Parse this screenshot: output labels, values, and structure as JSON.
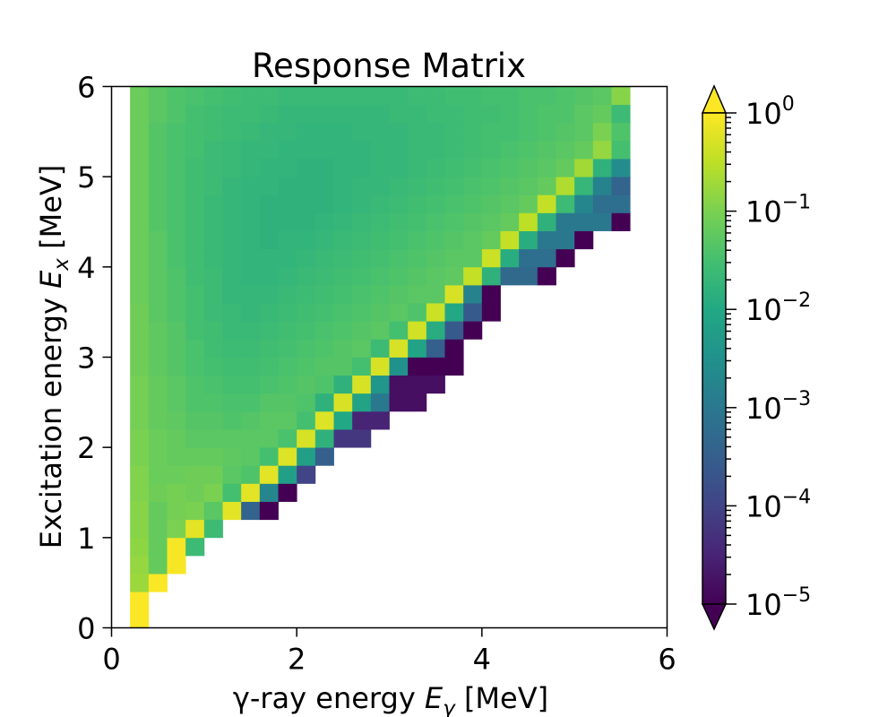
{
  "chart_data": {
    "type": "heatmap",
    "title": "Response Matrix",
    "xlabel": {
      "prefix": "γ-ray energy ",
      "sym": "E",
      "sub": "γ",
      "suffix": " [MeV]"
    },
    "ylabel": {
      "prefix": "Excitation energy ",
      "sym": "E",
      "sub": "x",
      "suffix": " [MeV]"
    },
    "xlim": [
      0,
      6
    ],
    "ylim": [
      0,
      6
    ],
    "x_ticks": [
      "0",
      "2",
      "4",
      "6"
    ],
    "y_ticks": [
      "0",
      "1",
      "2",
      "3",
      "4",
      "5",
      "6"
    ],
    "bin_width_mev": 0.2,
    "x_bins_start_mev": 0.2,
    "colorbar": {
      "scale": "log",
      "min": 1e-05,
      "max": 1,
      "tick_labels": [
        {
          "base": "10",
          "exp": "0"
        },
        {
          "base": "10",
          "exp": "−1"
        },
        {
          "base": "10",
          "exp": "−2"
        },
        {
          "base": "10",
          "exp": "−3"
        },
        {
          "base": "10",
          "exp": "−4"
        },
        {
          "base": "10",
          "exp": "−5"
        }
      ],
      "extend": "both",
      "colormap": "viridis"
    },
    "values_log10": [
      [
        -0.02
      ],
      [
        -0.02
      ],
      [
        -0.75,
        -0.02
      ],
      [
        -0.8,
        -1.2,
        -0.05
      ],
      [
        -0.85,
        -1.2,
        -0.05,
        -1.6
      ],
      [
        -0.9,
        -1.2,
        -1.0,
        -0.2,
        -1.6
      ],
      [
        -0.9,
        -1.2,
        -1.05,
        -1.0,
        -1.3,
        -0.2,
        -3.4,
        -5.0
      ],
      [
        -0.95,
        -1.1,
        -1.05,
        -1.1,
        -1.0,
        -1.5,
        -0.2,
        -2.7,
        -5.0
      ],
      [
        -0.95,
        -1.15,
        -1.15,
        -1.1,
        -1.1,
        -1.3,
        -1.4,
        -0.2,
        -2.2,
        -4.0
      ],
      [
        -1.0,
        -1.15,
        -1.2,
        -1.2,
        -1.2,
        -1.25,
        -1.3,
        -1.5,
        -0.25,
        -2.2,
        -3.5
      ],
      [
        -1.0,
        -1.15,
        -1.2,
        -1.3,
        -1.3,
        -1.3,
        -1.3,
        -1.3,
        -1.45,
        -0.3,
        -1.8,
        -4.2,
        -4.2
      ],
      [
        -1.05,
        -1.2,
        -1.25,
        -1.35,
        -1.35,
        -1.4,
        -1.35,
        -1.3,
        -1.3,
        -1.5,
        -0.25,
        -2.0,
        -4.5,
        -4.5
      ],
      [
        -1.05,
        -1.2,
        -1.3,
        -1.4,
        -1.4,
        -1.45,
        -1.45,
        -1.35,
        -1.35,
        -1.4,
        -1.8,
        -0.3,
        -2.1,
        -3.0,
        -4.8,
        -4.8
      ],
      [
        -1.05,
        -1.2,
        -1.3,
        -1.4,
        -1.45,
        -1.5,
        -1.5,
        -1.45,
        -1.4,
        -1.35,
        -1.4,
        -1.8,
        -0.3,
        -2.4,
        -4.8,
        -4.8,
        -4.8
      ],
      [
        -1.1,
        -1.25,
        -1.35,
        -1.45,
        -1.5,
        -1.55,
        -1.55,
        -1.5,
        -1.45,
        -1.4,
        -1.35,
        -1.35,
        -1.5,
        -0.3,
        -2.5,
        -5.0,
        -5.0,
        -5.0
      ],
      [
        -1.1,
        -1.25,
        -1.35,
        -1.45,
        -1.55,
        -1.6,
        -1.6,
        -1.55,
        -1.5,
        -1.45,
        -1.4,
        -1.35,
        -1.3,
        -1.6,
        -0.3,
        -2.1,
        -3.5,
        -5.0
      ],
      [
        -1.1,
        -1.25,
        -1.35,
        -1.5,
        -1.55,
        -1.65,
        -1.65,
        -1.6,
        -1.55,
        -1.5,
        -1.45,
        -1.4,
        -1.35,
        -1.3,
        -1.5,
        -0.35,
        -1.9,
        -3.6,
        -5.0
      ],
      [
        -1.1,
        -1.3,
        -1.4,
        -1.5,
        -1.6,
        -1.65,
        -1.7,
        -1.65,
        -1.6,
        -1.55,
        -1.5,
        -1.45,
        -1.4,
        -1.35,
        -1.3,
        -1.4,
        -0.4,
        -2.0,
        -3.6,
        -5.0
      ],
      [
        -1.15,
        -1.3,
        -1.4,
        -1.5,
        -1.6,
        -1.7,
        -1.7,
        -1.7,
        -1.65,
        -1.6,
        -1.55,
        -1.5,
        -1.45,
        -1.4,
        -1.35,
        -1.3,
        -1.3,
        -0.3,
        -2.8,
        -5.0
      ],
      [
        -1.15,
        -1.3,
        -1.4,
        -1.55,
        -1.6,
        -1.7,
        -1.75,
        -1.75,
        -1.7,
        -1.65,
        -1.6,
        -1.55,
        -1.5,
        -1.45,
        -1.4,
        -1.35,
        -1.3,
        -1.25,
        -0.45,
        -1.8,
        -3.3,
        -3.3,
        -5.0
      ],
      [
        -1.15,
        -1.3,
        -1.45,
        -1.55,
        -1.65,
        -1.7,
        -1.75,
        -1.75,
        -1.75,
        -1.7,
        -1.65,
        -1.6,
        -1.55,
        -1.5,
        -1.45,
        -1.4,
        -1.35,
        -1.3,
        -1.3,
        -0.4,
        -1.9,
        -3.2,
        -3.2,
        -5.0
      ],
      [
        -1.15,
        -1.3,
        -1.45,
        -1.55,
        -1.65,
        -1.7,
        -1.75,
        -1.8,
        -1.75,
        -1.75,
        -1.7,
        -1.65,
        -1.6,
        -1.55,
        -1.5,
        -1.45,
        -1.4,
        -1.35,
        -1.3,
        -1.2,
        -0.45,
        -1.9,
        -3.0,
        -3.0,
        -5.0
      ],
      [
        -1.15,
        -1.35,
        -1.45,
        -1.55,
        -1.65,
        -1.7,
        -1.75,
        -1.8,
        -1.8,
        -1.8,
        -1.75,
        -1.7,
        -1.65,
        -1.6,
        -1.55,
        -1.5,
        -1.45,
        -1.4,
        -1.35,
        -1.3,
        -1.2,
        -0.5,
        -1.8,
        -3.0,
        -3.0,
        -3.0,
        -5.0
      ],
      [
        -1.15,
        -1.35,
        -1.45,
        -1.55,
        -1.65,
        -1.7,
        -1.75,
        -1.8,
        -1.8,
        -1.8,
        -1.8,
        -1.75,
        -1.7,
        -1.65,
        -1.6,
        -1.55,
        -1.5,
        -1.45,
        -1.4,
        -1.35,
        -1.3,
        -1.2,
        -0.45,
        -1.6,
        -2.7,
        -3.2,
        -3.2
      ],
      [
        -1.15,
        -1.35,
        -1.45,
        -1.55,
        -1.6,
        -1.7,
        -1.75,
        -1.75,
        -1.8,
        -1.8,
        -1.8,
        -1.75,
        -1.7,
        -1.7,
        -1.65,
        -1.6,
        -1.55,
        -1.5,
        -1.45,
        -1.4,
        -1.35,
        -1.3,
        -1.2,
        -0.6,
        -1.7,
        -2.8,
        -3.4
      ],
      [
        -1.15,
        -1.35,
        -1.45,
        -1.55,
        -1.6,
        -1.65,
        -1.7,
        -1.75,
        -1.75,
        -1.8,
        -1.8,
        -1.75,
        -1.75,
        -1.7,
        -1.7,
        -1.65,
        -1.6,
        -1.55,
        -1.5,
        -1.45,
        -1.4,
        -1.35,
        -1.3,
        -1.2,
        -0.7,
        -1.8,
        -2.6
      ],
      [
        -1.15,
        -1.35,
        -1.45,
        -1.5,
        -1.6,
        -1.65,
        -1.7,
        -1.7,
        -1.75,
        -1.75,
        -1.75,
        -1.75,
        -1.75,
        -1.7,
        -1.7,
        -1.65,
        -1.65,
        -1.6,
        -1.55,
        -1.5,
        -1.45,
        -1.4,
        -1.35,
        -1.3,
        -1.2,
        -0.8,
        -1.5
      ],
      [
        -1.15,
        -1.35,
        -1.45,
        -1.5,
        -1.55,
        -1.6,
        -1.65,
        -1.7,
        -1.7,
        -1.75,
        -1.75,
        -1.75,
        -1.7,
        -1.7,
        -1.7,
        -1.65,
        -1.65,
        -1.6,
        -1.55,
        -1.5,
        -1.5,
        -1.45,
        -1.4,
        -1.35,
        -1.3,
        -1.0,
        -1.4
      ],
      [
        -1.15,
        -1.3,
        -1.4,
        -1.5,
        -1.55,
        -1.6,
        -1.6,
        -1.65,
        -1.7,
        -1.7,
        -1.7,
        -1.7,
        -1.7,
        -1.7,
        -1.65,
        -1.65,
        -1.6,
        -1.6,
        -1.55,
        -1.55,
        -1.5,
        -1.45,
        -1.4,
        -1.4,
        -1.3,
        -1.2,
        -1.6
      ],
      [
        -1.15,
        -1.3,
        -1.4,
        -1.45,
        -1.5,
        -1.55,
        -1.6,
        -1.6,
        -1.65,
        -1.65,
        -1.65,
        -1.65,
        -1.65,
        -1.65,
        -1.65,
        -1.6,
        -1.6,
        -1.55,
        -1.55,
        -1.5,
        -1.5,
        -1.45,
        -1.45,
        -1.4,
        -1.35,
        -1.3,
        -0.9
      ]
    ]
  }
}
